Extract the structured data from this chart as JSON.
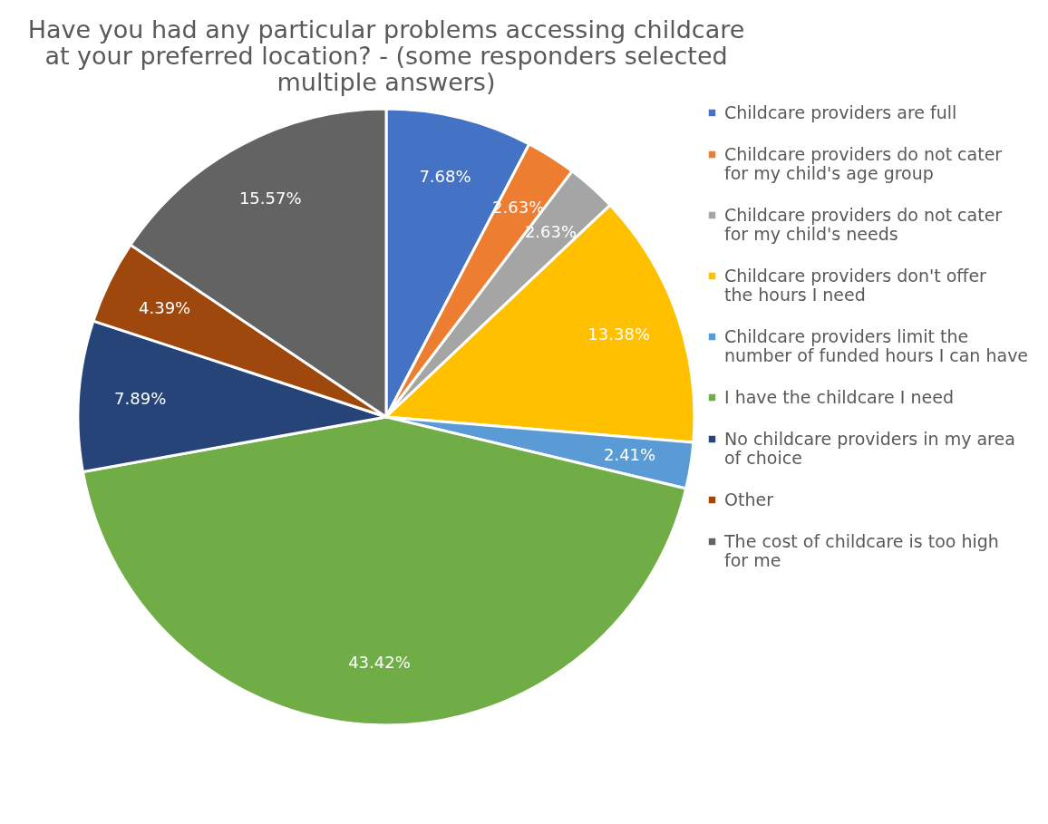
{
  "chart_data": {
    "type": "pie",
    "title": "Have you had any particular problems accessing childcare at your preferred location? - (some responders selected multiple answers)",
    "categories": [
      "Childcare providers are full",
      "Childcare providers do not cater for my child's age group",
      "Childcare providers do not cater for my child's needs",
      "Childcare providers don't offer the hours I need",
      "Childcare providers limit the number of funded hours I can have",
      "I have the childcare I need",
      "No childcare providers in my area of choice",
      "Other",
      "The cost of childcare is too high for me"
    ],
    "values": [
      7.68,
      2.63,
      2.63,
      13.38,
      2.41,
      43.42,
      7.89,
      4.39,
      15.57
    ],
    "value_labels": [
      "7.68%",
      "2.63%",
      "2.63%",
      "13.38%",
      "2.41%",
      "43.42%",
      "7.89%",
      "4.39%",
      "15.57%"
    ],
    "colors": [
      "#4472c4",
      "#ed7d31",
      "#a5a5a5",
      "#ffc000",
      "#5b9bd5",
      "#70ad47",
      "#264478",
      "#9e480e",
      "#636363"
    ],
    "legend": "right"
  }
}
